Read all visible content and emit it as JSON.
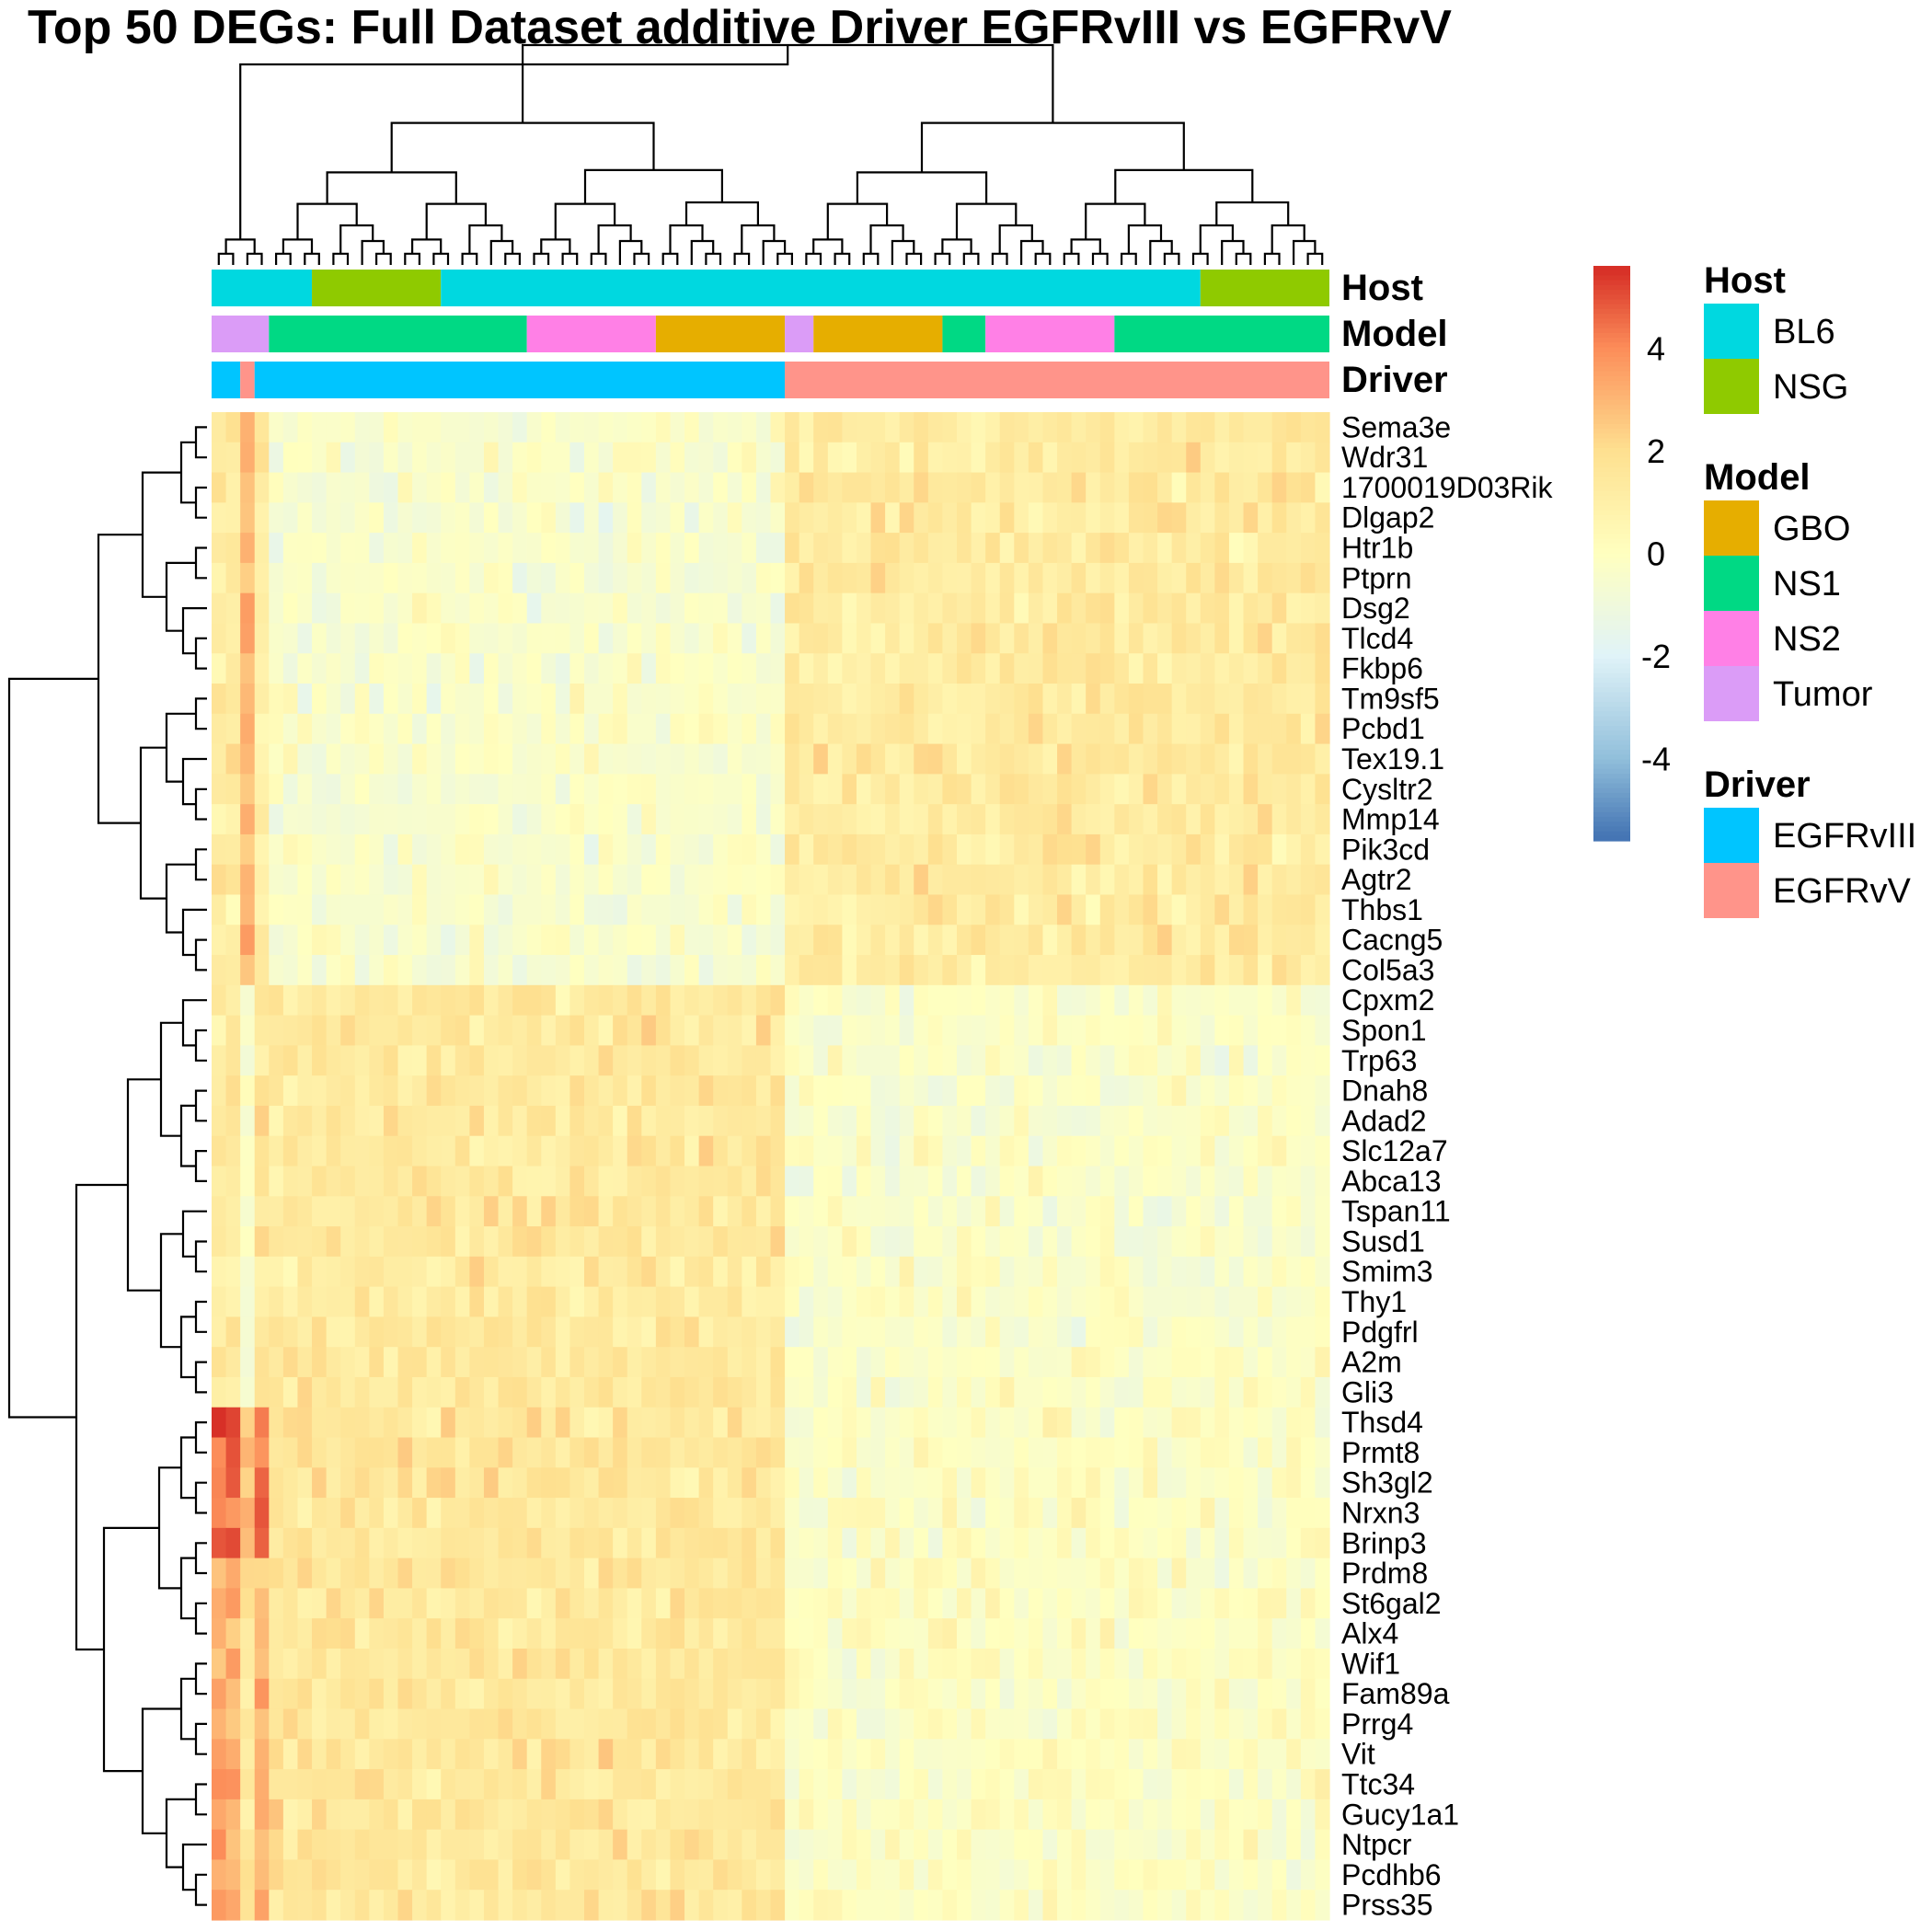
{
  "chart_data": {
    "type": "heatmap",
    "title": "Top 50 DEGs: Full Dataset additive Driver EGFRvIII vs EGFRvV",
    "genes": [
      "Sema3e",
      "Wdr31",
      "1700019D03Rik",
      "Dlgap2",
      "Htr1b",
      "Ptprn",
      "Dsg2",
      "Tlcd4",
      "Fkbp6",
      "Tm9sf5",
      "Pcbd1",
      "Tex19.1",
      "Cysltr2",
      "Mmp14",
      "Pik3cd",
      "Agtr2",
      "Thbs1",
      "Cacng5",
      "Col5a3",
      "Cpxm2",
      "Spon1",
      "Trp63",
      "Dnah8",
      "Adad2",
      "Slc12a7",
      "Abca13",
      "Tspan11",
      "Susd1",
      "Smim3",
      "Thy1",
      "Pdgfrl",
      "A2m",
      "Gli3",
      "Thsd4",
      "Prmt8",
      "Sh3gl2",
      "Nrxn3",
      "Brinp3",
      "Prdm8",
      "St6gal2",
      "Alx4",
      "Wif1",
      "Fam89a",
      "Prrg4",
      "Vit",
      "Ttc34",
      "Gucy1a1",
      "Ntpcr",
      "Pcdhb6",
      "Prss35"
    ],
    "gene_groups": [
      0,
      0,
      0,
      0,
      0,
      0,
      0,
      0,
      0,
      0,
      0,
      0,
      0,
      0,
      0,
      0,
      0,
      0,
      0,
      1,
      1,
      1,
      1,
      1,
      1,
      1,
      1,
      1,
      1,
      1,
      1,
      1,
      1,
      2,
      2,
      2,
      2,
      2,
      2,
      2,
      2,
      2,
      2,
      2,
      2,
      2,
      2,
      2,
      2,
      2
    ],
    "annotation_rows": [
      {
        "name": "Host",
        "segments": [
          [
            "BL6",
            7
          ],
          [
            "NSG",
            9
          ],
          [
            "BL6",
            53
          ],
          [
            "NSG",
            9
          ]
        ]
      },
      {
        "name": "Model",
        "segments": [
          [
            "Tumor",
            4
          ],
          [
            "NS1",
            18
          ],
          [
            "NS2",
            9
          ],
          [
            "GBO",
            9
          ],
          [
            "Tumor",
            2
          ],
          [
            "GBO",
            9
          ],
          [
            "NS1",
            3
          ],
          [
            "NS2",
            9
          ],
          [
            "NS1",
            15
          ]
        ]
      },
      {
        "name": "Driver",
        "segments": [
          [
            "EGFRvIII",
            2
          ],
          [
            "EGFRvV",
            1
          ],
          [
            "EGFRvIII",
            37
          ],
          [
            "EGFRvV",
            38
          ]
        ]
      }
    ],
    "color_scale": {
      "stops": [
        [
          -5.5,
          "#4575b4"
        ],
        [
          -4,
          "#91bfdb"
        ],
        [
          -2,
          "#e0f3f8"
        ],
        [
          0,
          "#ffffbf"
        ],
        [
          2,
          "#fee090"
        ],
        [
          4,
          "#fc8d59"
        ],
        [
          5.5,
          "#d73027"
        ]
      ],
      "ticks": [
        4,
        2,
        0,
        -2,
        -4
      ],
      "range": [
        -5.6,
        5.6
      ]
    },
    "legends": [
      {
        "title": "Host",
        "items": [
          {
            "label": "BL6",
            "color": "#00d8e0"
          },
          {
            "label": "NSG",
            "color": "#8fca00"
          }
        ]
      },
      {
        "title": "Model",
        "items": [
          {
            "label": "GBO",
            "color": "#e6ae00"
          },
          {
            "label": "NS1",
            "color": "#00d984"
          },
          {
            "label": "NS2",
            "color": "#ff80e6"
          },
          {
            "label": "Tumor",
            "color": "#db9cf7"
          }
        ]
      },
      {
        "title": "Driver",
        "items": [
          {
            "label": "EGFRvIII",
            "color": "#00c5ff"
          },
          {
            "label": "EGFRvV",
            "color": "#ff948a"
          }
        ]
      }
    ],
    "n_samples": 78
  }
}
